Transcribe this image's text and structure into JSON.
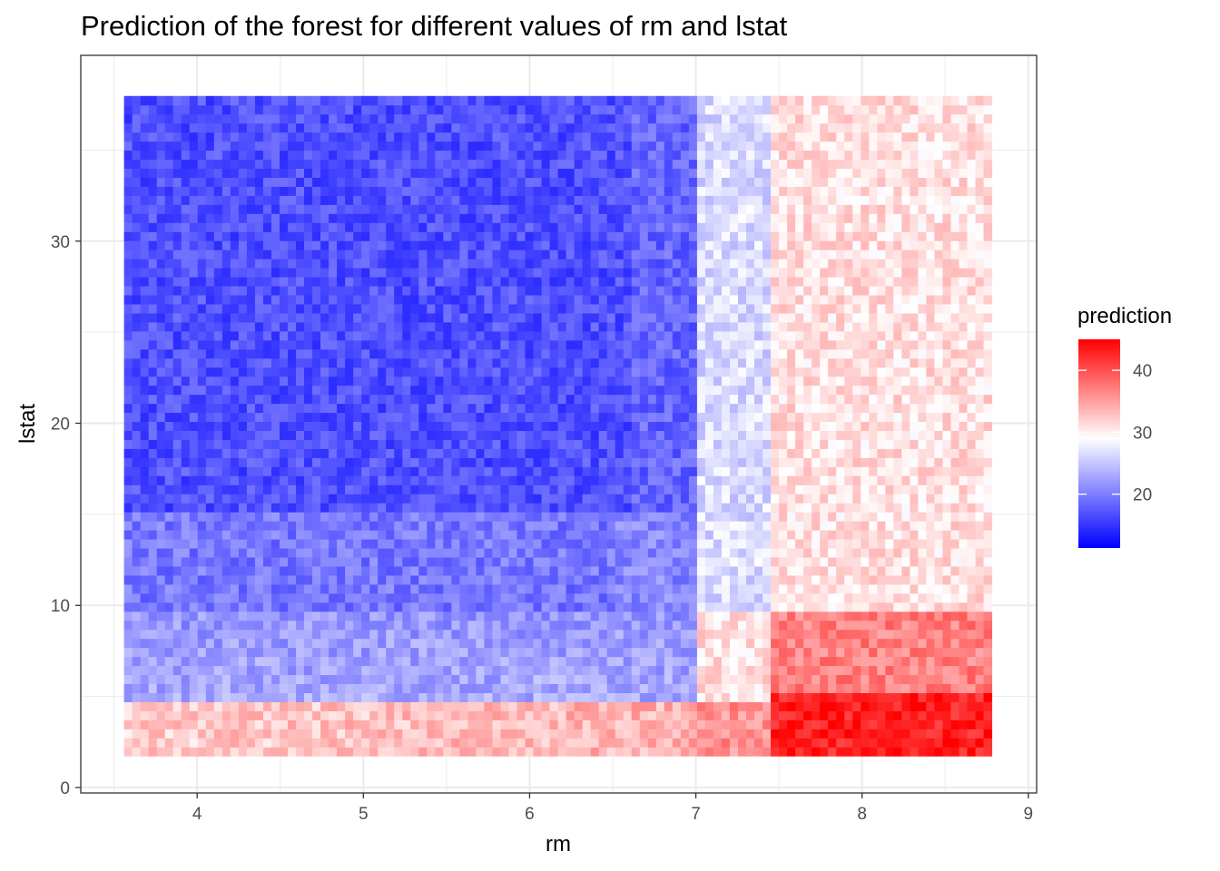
{
  "chart_data": {
    "type": "heatmap",
    "title": "Prediction of the forest for different values of rm and lstat",
    "xlabel": "rm",
    "ylabel": "lstat",
    "xlim": [
      3.3,
      9.05
    ],
    "ylim": [
      -0.3,
      40.2
    ],
    "x_ticks": [
      "4",
      "5",
      "6",
      "7",
      "8",
      "9"
    ],
    "y_ticks": [
      "0",
      "10",
      "20",
      "30"
    ],
    "x_tick_values": [
      4,
      5,
      6,
      7,
      8,
      9
    ],
    "y_tick_values": [
      0,
      10,
      20,
      30
    ],
    "grid": true,
    "x_range": [
      3.56,
      8.78
    ],
    "y_range": [
      1.73,
      37.97
    ],
    "fill_legend": {
      "title": "prediction",
      "position": "right",
      "ticks": [
        "20",
        "30",
        "40"
      ],
      "tick_values": [
        20,
        30,
        40
      ],
      "limits": [
        11.3,
        45.0
      ],
      "low_color": "#0000ff",
      "mid_color": "#ffffff",
      "high_color": "#ff0000",
      "midpoint": 29
    },
    "pattern_summary": [
      {
        "region": "rm < 7, lstat > 15",
        "prediction_approx": 17
      },
      {
        "region": "rm < 7, lstat 10-15",
        "prediction_approx": 20
      },
      {
        "region": "rm < 7, lstat 5-10",
        "prediction_approx": 23
      },
      {
        "region": "rm < 7, lstat < 5",
        "prediction_approx": 32
      },
      {
        "region": "rm 7-7.4, lstat > 10",
        "prediction_approx": 27
      },
      {
        "region": "rm > 7.4, lstat > 10",
        "prediction_approx": 31
      },
      {
        "region": "rm 7-7.5, lstat < 5",
        "prediction_approx": 36
      },
      {
        "region": "rm > 7.5, lstat 5-10",
        "prediction_approx": 38
      },
      {
        "region": "rm > 7.5, lstat < 5",
        "prediction_approx": 44
      }
    ]
  }
}
